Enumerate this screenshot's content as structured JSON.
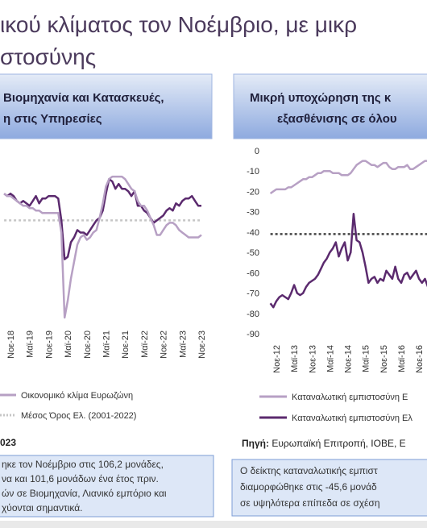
{
  "title_lines": [
    "ικού κλίματος τον Νοέμβριο, με μικρ",
    "στοσύνης"
  ],
  "panels": [
    {
      "header_lines": [
        "Βιομηχανία και Κατασκευές,",
        "η στις Υπηρεσίες"
      ],
      "source": "023",
      "note_lines": [
        "ηκε τον Νοέμβριο στις 106,2 μονάδες,",
        "να και 101,6 μονάδων ένα έτος πριν.",
        "ών σε Βιομηχανία, Λιανικό εμπόριο και",
        "χύονται σημαντικά."
      ]
    },
    {
      "header_lines": [
        "Μικρή υποχώρηση της κ",
        "εξασθένισης σε όλου"
      ],
      "source_label": "Πηγή:",
      "source": "Ευρωπαϊκή Επιτροπή, ΙΟΒΕ, Ε",
      "note_lines": [
        "Ο δείκτης καταναλωτικής εμπιστ",
        "διαμορφώθηκε στις -45,6 μονάδ",
        "σε υψηλότερα επίπεδα σε σχέση"
      ]
    }
  ],
  "chart_data": [
    {
      "type": "line",
      "categories": [
        null,
        null,
        "Νοε-18",
        null,
        null,
        null,
        null,
        null,
        "Μαϊ-19",
        null,
        null,
        null,
        null,
        null,
        "Νοε-19",
        null,
        null,
        null,
        null,
        null,
        "Μαϊ-20",
        null,
        null,
        null,
        null,
        null,
        "Νοε-20",
        null,
        null,
        null,
        null,
        null,
        "Μαϊ-21",
        null,
        null,
        null,
        null,
        null,
        "Νοε-21",
        null,
        null,
        null,
        null,
        null,
        "Μαϊ-22",
        null,
        null,
        null,
        null,
        null,
        "Νοε-22",
        null,
        null,
        null,
        null,
        null,
        "Μαϊ-23",
        null,
        null,
        null,
        null,
        null,
        "Νοε-23"
      ],
      "series": [
        {
          "color": "#5b2a6e",
          "values": [
            111,
            110,
            111,
            110,
            108,
            107,
            108,
            107,
            106,
            108,
            110,
            107,
            109,
            109,
            110,
            110,
            110,
            109,
            100,
            84,
            85,
            91,
            93,
            96,
            95,
            95,
            94,
            96,
            98,
            100,
            101,
            104,
            111,
            117,
            116,
            113,
            115,
            113,
            113,
            112,
            110,
            112,
            106,
            106,
            104,
            103,
            101,
            99,
            100,
            101,
            102,
            104,
            105,
            104,
            107,
            106,
            108,
            109,
            109,
            110,
            108,
            106,
            106
          ]
        },
        {
          "name": "Οικονομικό κλίμα Ευρωζώνη",
          "color": "#b7a0c4",
          "values": [
            111,
            110,
            110,
            109,
            108,
            107,
            106,
            106,
            105,
            105,
            104,
            104,
            103,
            103,
            103,
            103,
            103,
            103,
            95,
            60,
            67,
            76,
            83,
            90,
            93,
            94,
            92,
            93,
            95,
            96,
            101,
            107,
            114,
            117,
            118,
            118,
            118,
            118,
            117,
            115,
            113,
            112,
            108,
            106,
            106,
            104,
            101,
            98,
            94,
            94,
            96,
            98,
            99,
            99,
            98,
            96,
            95,
            94,
            93,
            93,
            93,
            93,
            94
          ]
        }
      ],
      "hlines": [
        {
          "name": "Μέσος Όρος Ελ. (2001-2022)",
          "value": 100,
          "color": "#c6c6c6",
          "dashed": true
        }
      ],
      "ylim": [
        58,
        126
      ]
    },
    {
      "type": "line",
      "categories": [
        null,
        null,
        "Νοε-12",
        null,
        null,
        null,
        null,
        null,
        "Μαϊ-13",
        null,
        null,
        null,
        null,
        null,
        "Νοε-13",
        null,
        null,
        null,
        null,
        null,
        "Μαϊ-14",
        null,
        null,
        null,
        null,
        null,
        "Νοε-14",
        null,
        null,
        null,
        null,
        null,
        "Μαϊ-15",
        null,
        null,
        null,
        null,
        null,
        "Νοε-15",
        null,
        null,
        null,
        null,
        null,
        "Μαϊ-16",
        null,
        null,
        null,
        null,
        null,
        "Νοε-16",
        null,
        null,
        null,
        null,
        null
      ],
      "series": [
        {
          "name": "Καταναλωτική εμπιστοσύνη Ε",
          "color": "#b7a0c4",
          "values": [
            -21,
            -20,
            -19,
            -19,
            -19,
            -19,
            -18,
            -18,
            -17,
            -16,
            -15,
            -14,
            -14,
            -13,
            -13,
            -12,
            -11,
            -11,
            -10,
            -10,
            -10,
            -11,
            -11,
            -11,
            -12,
            -12,
            -12,
            -11,
            -9,
            -7,
            -6,
            -5,
            -5,
            -6,
            -7,
            -7,
            -8,
            -7,
            -6,
            -6,
            -8,
            -9,
            -9,
            -8,
            -8,
            -8,
            -7,
            -9,
            -9,
            -8,
            -7,
            -6,
            -5,
            -5,
            -6,
            -4
          ]
        },
        {
          "name": "Καταναλωτική εμπιστοσύνη Ελ",
          "color": "#5b2a6e",
          "values": [
            -75,
            -77,
            -74,
            -72,
            -71,
            -72,
            -73,
            -70,
            -66,
            -70,
            -71,
            -70,
            -67,
            -65,
            -64,
            -63,
            -61,
            -58,
            -55,
            -53,
            -50,
            -48,
            -45,
            -52,
            -48,
            -45,
            -54,
            -50,
            -31,
            -44,
            -45,
            -50,
            -57,
            -65,
            -63,
            -62,
            -65,
            -63,
            -64,
            -59,
            -61,
            -63,
            -57,
            -63,
            -65,
            -61,
            -60,
            -63,
            -61,
            -59,
            -63,
            -65,
            -63,
            -67,
            -65,
            -63
          ]
        }
      ],
      "hlines": [
        {
          "value": -41,
          "color": "#444444",
          "dashed": true
        }
      ],
      "ylim": [
        -90,
        0
      ],
      "yticks": [
        0,
        -10,
        -20,
        -30,
        -40,
        -50,
        -60,
        -70,
        -80,
        -90
      ]
    }
  ]
}
